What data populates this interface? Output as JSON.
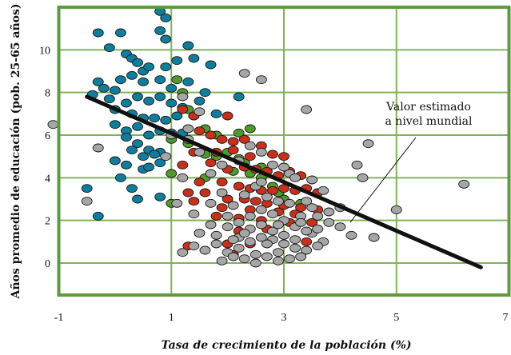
{
  "chart_data": {
    "type": "scatter",
    "xlabel": "Tasa de crecimiento de la población (%)",
    "ylabel": "Años promedio de educación (pob. 25-65 años)",
    "xlim": [
      -1,
      7
    ],
    "ylim": [
      -1.5,
      12
    ],
    "x_ticks": [
      "-1",
      "1",
      "3",
      "5",
      "7"
    ],
    "y_ticks": [
      "0",
      "2",
      "4",
      "6",
      "8",
      "10"
    ],
    "grid": true,
    "annotation": [
      "Valor estimado",
      "a nivel mundial"
    ],
    "colors": {
      "plot_border": "#5b9b3c",
      "grid": "#7fb35a",
      "regression_line": "#111111",
      "blue": "#0f7d9c",
      "green": "#4f9a2c",
      "red": "#c7301a",
      "gray": "#a6a6a6"
    },
    "regression": {
      "points": [
        [
          -0.5,
          7.8
        ],
        [
          6.5,
          -0.2
        ]
      ]
    },
    "series": [
      {
        "color_key": "blue",
        "points": [
          [
            -0.3,
            10.8
          ],
          [
            0.1,
            10.8
          ],
          [
            0.8,
            11.8
          ],
          [
            0.9,
            11.5
          ],
          [
            1.3,
            10.2
          ],
          [
            0.8,
            10.9
          ],
          [
            0.9,
            10.5
          ],
          [
            -0.1,
            10.1
          ],
          [
            0.2,
            9.8
          ],
          [
            0.3,
            9.6
          ],
          [
            0.4,
            9.4
          ],
          [
            0.5,
            9.0
          ],
          [
            0.6,
            9.2
          ],
          [
            0.9,
            9.2
          ],
          [
            1.1,
            9.5
          ],
          [
            1.4,
            9.6
          ],
          [
            1.7,
            9.3
          ],
          [
            -0.3,
            8.5
          ],
          [
            -0.2,
            8.2
          ],
          [
            0.0,
            8.1
          ],
          [
            0.1,
            8.6
          ],
          [
            0.3,
            8.8
          ],
          [
            0.5,
            8.5
          ],
          [
            0.8,
            8.6
          ],
          [
            1.0,
            8.2
          ],
          [
            1.3,
            8.5
          ],
          [
            1.6,
            8.0
          ],
          [
            2.2,
            7.8
          ],
          [
            -0.4,
            7.9
          ],
          [
            -0.1,
            7.7
          ],
          [
            0.2,
            7.5
          ],
          [
            0.4,
            7.8
          ],
          [
            0.6,
            7.6
          ],
          [
            0.8,
            7.8
          ],
          [
            1.0,
            7.5
          ],
          [
            1.2,
            7.3
          ],
          [
            1.5,
            7.6
          ],
          [
            1.8,
            7.0
          ],
          [
            0.0,
            7.2
          ],
          [
            0.3,
            7.0
          ],
          [
            0.5,
            6.8
          ],
          [
            0.7,
            6.8
          ],
          [
            0.9,
            6.7
          ],
          [
            1.1,
            6.9
          ],
          [
            1.4,
            6.9
          ],
          [
            0.0,
            6.5
          ],
          [
            0.2,
            6.2
          ],
          [
            0.4,
            6.4
          ],
          [
            0.6,
            6.0
          ],
          [
            0.8,
            6.2
          ],
          [
            1.0,
            6.1
          ],
          [
            1.2,
            6.1
          ],
          [
            0.2,
            5.9
          ],
          [
            0.4,
            5.6
          ],
          [
            0.6,
            5.3
          ],
          [
            0.8,
            5.2
          ],
          [
            0.3,
            5.3
          ],
          [
            0.5,
            5.0
          ],
          [
            0.7,
            5.1
          ],
          [
            0.0,
            4.8
          ],
          [
            0.2,
            4.6
          ],
          [
            0.5,
            4.4
          ],
          [
            0.8,
            4.7
          ],
          [
            0.1,
            4.0
          ],
          [
            0.6,
            4.5
          ],
          [
            0.3,
            3.5
          ],
          [
            -0.5,
            3.5
          ],
          [
            0.4,
            3.0
          ],
          [
            -0.3,
            2.2
          ],
          [
            0.8,
            3.1
          ]
        ]
      },
      {
        "color_key": "green",
        "points": [
          [
            1.1,
            8.6
          ],
          [
            1.2,
            8.0
          ],
          [
            1.3,
            7.2
          ],
          [
            1.6,
            6.3
          ],
          [
            1.8,
            6.0
          ],
          [
            2.2,
            6.1
          ],
          [
            2.4,
            6.3
          ],
          [
            1.0,
            5.8
          ],
          [
            1.3,
            5.6
          ],
          [
            1.6,
            5.1
          ],
          [
            1.8,
            5.0
          ],
          [
            2.0,
            5.2
          ],
          [
            2.2,
            4.9
          ],
          [
            2.3,
            4.7
          ],
          [
            1.0,
            4.2
          ],
          [
            1.6,
            4.0
          ],
          [
            2.1,
            4.3
          ],
          [
            2.4,
            4.2
          ],
          [
            2.6,
            4.0
          ],
          [
            2.8,
            3.6
          ],
          [
            3.0,
            3.0
          ],
          [
            3.3,
            2.8
          ],
          [
            2.9,
            3.3
          ],
          [
            1.0,
            2.8
          ],
          [
            2.6,
            4.5
          ]
        ]
      },
      {
        "color_key": "red",
        "points": [
          [
            1.2,
            7.2
          ],
          [
            1.4,
            6.9
          ],
          [
            2.0,
            6.9
          ],
          [
            1.5,
            6.2
          ],
          [
            1.7,
            6.0
          ],
          [
            1.9,
            5.8
          ],
          [
            2.1,
            5.7
          ],
          [
            2.3,
            5.8
          ],
          [
            2.6,
            5.5
          ],
          [
            1.4,
            5.2
          ],
          [
            1.8,
            5.2
          ],
          [
            2.1,
            5.3
          ],
          [
            2.4,
            5.0
          ],
          [
            2.8,
            5.1
          ],
          [
            3.0,
            5.0
          ],
          [
            1.2,
            4.6
          ],
          [
            1.7,
            4.7
          ],
          [
            2.0,
            4.4
          ],
          [
            2.3,
            4.5
          ],
          [
            2.5,
            4.4
          ],
          [
            2.7,
            4.3
          ],
          [
            2.9,
            4.1
          ],
          [
            3.1,
            4.3
          ],
          [
            3.3,
            4.1
          ],
          [
            1.5,
            3.8
          ],
          [
            1.9,
            3.8
          ],
          [
            2.2,
            3.6
          ],
          [
            2.4,
            3.5
          ],
          [
            2.6,
            3.4
          ],
          [
            2.8,
            3.4
          ],
          [
            3.0,
            3.5
          ],
          [
            3.2,
            3.4
          ],
          [
            3.4,
            3.5
          ],
          [
            3.6,
            3.3
          ],
          [
            1.3,
            3.3
          ],
          [
            1.6,
            3.3
          ],
          [
            2.0,
            3.0
          ],
          [
            2.3,
            3.0
          ],
          [
            2.5,
            2.9
          ],
          [
            2.7,
            2.8
          ],
          [
            3.0,
            2.7
          ],
          [
            3.3,
            2.6
          ],
          [
            3.6,
            2.5
          ],
          [
            1.4,
            2.9
          ],
          [
            1.9,
            2.6
          ],
          [
            2.4,
            2.5
          ],
          [
            2.9,
            2.4
          ],
          [
            3.2,
            2.3
          ],
          [
            1.8,
            2.2
          ],
          [
            2.2,
            2.1
          ],
          [
            2.6,
            2.0
          ],
          [
            3.1,
            1.9
          ],
          [
            3.5,
            1.9
          ],
          [
            1.5,
            1.4
          ],
          [
            2.2,
            1.5
          ],
          [
            2.7,
            1.6
          ],
          [
            1.3,
            0.8
          ],
          [
            2.0,
            0.9
          ],
          [
            2.4,
            0.9
          ],
          [
            3.4,
            1.0
          ],
          [
            2.1,
            0.4
          ]
        ]
      },
      {
        "color_key": "gray",
        "points": [
          [
            -1.1,
            6.5
          ],
          [
            -0.3,
            5.4
          ],
          [
            -0.5,
            2.9
          ],
          [
            0.9,
            5.0
          ],
          [
            1.0,
            6.0
          ],
          [
            1.3,
            6.3
          ],
          [
            1.2,
            7.8
          ],
          [
            1.5,
            7.1
          ],
          [
            2.3,
            8.9
          ],
          [
            2.6,
            8.6
          ],
          [
            3.4,
            7.2
          ],
          [
            3.1,
            4.2
          ],
          [
            3.2,
            4.0
          ],
          [
            3.5,
            3.9
          ],
          [
            3.7,
            3.4
          ],
          [
            4.3,
            4.6
          ],
          [
            4.4,
            4.0
          ],
          [
            4.5,
            5.6
          ],
          [
            5.0,
            2.5
          ],
          [
            6.2,
            3.7
          ],
          [
            1.3,
            5.8
          ],
          [
            1.5,
            5.2
          ],
          [
            1.7,
            4.2
          ],
          [
            1.9,
            4.6
          ],
          [
            2.2,
            4.8
          ],
          [
            2.4,
            5.5
          ],
          [
            2.6,
            5.2
          ],
          [
            2.8,
            4.6
          ],
          [
            3.0,
            4.5
          ],
          [
            1.2,
            4.0
          ],
          [
            1.1,
            2.8
          ],
          [
            1.4,
            2.3
          ],
          [
            1.7,
            2.8
          ],
          [
            1.9,
            3.3
          ],
          [
            2.1,
            2.7
          ],
          [
            2.3,
            3.2
          ],
          [
            2.5,
            3.6
          ],
          [
            2.7,
            3.1
          ],
          [
            2.9,
            2.9
          ],
          [
            3.1,
            2.8
          ],
          [
            3.3,
            2.2
          ],
          [
            3.4,
            2.9
          ],
          [
            3.6,
            2.2
          ],
          [
            3.8,
            1.9
          ],
          [
            4.0,
            1.7
          ],
          [
            4.2,
            1.3
          ],
          [
            4.6,
            1.2
          ],
          [
            3.5,
            1.4
          ],
          [
            3.7,
            1.0
          ],
          [
            1.5,
            1.4
          ],
          [
            1.8,
            1.3
          ],
          [
            2.0,
            1.7
          ],
          [
            2.2,
            1.9
          ],
          [
            2.4,
            2.2
          ],
          [
            2.6,
            2.5
          ],
          [
            2.8,
            2.3
          ],
          [
            3.0,
            2.0
          ],
          [
            3.2,
            1.7
          ],
          [
            3.4,
            1.5
          ],
          [
            1.4,
            0.8
          ],
          [
            1.6,
            0.6
          ],
          [
            1.8,
            0.9
          ],
          [
            2.0,
            0.5
          ],
          [
            2.2,
            0.7
          ],
          [
            2.4,
            1.0
          ],
          [
            2.6,
            1.2
          ],
          [
            2.8,
            1.1
          ],
          [
            3.0,
            0.9
          ],
          [
            3.2,
            0.7
          ],
          [
            3.4,
            0.6
          ],
          [
            3.6,
            0.8
          ],
          [
            1.2,
            0.5
          ],
          [
            1.9,
            0.1
          ],
          [
            2.1,
            0.3
          ],
          [
            2.3,
            0.2
          ],
          [
            2.5,
            0.4
          ],
          [
            2.7,
            0.3
          ],
          [
            2.9,
            0.5
          ],
          [
            3.1,
            0.2
          ],
          [
            3.3,
            0.3
          ],
          [
            2.2,
            1.2
          ],
          [
            2.4,
            1.6
          ],
          [
            2.6,
            1.8
          ],
          [
            2.8,
            1.5
          ],
          [
            3.0,
            1.3
          ],
          [
            3.2,
            1.1
          ],
          [
            2.5,
            0.0
          ],
          [
            2.3,
            1.4
          ],
          [
            2.7,
            0.9
          ],
          [
            3.5,
            2.6
          ],
          [
            3.3,
            1.9
          ],
          [
            2.9,
            1.8
          ],
          [
            2.0,
            2.2
          ],
          [
            1.7,
            1.8
          ],
          [
            3.6,
            1.6
          ],
          [
            3.8,
            2.4
          ],
          [
            4.0,
            2.6
          ],
          [
            2.6,
            3.8
          ],
          [
            2.1,
            1.1
          ],
          [
            2.9,
            0.1
          ]
        ]
      }
    ]
  }
}
